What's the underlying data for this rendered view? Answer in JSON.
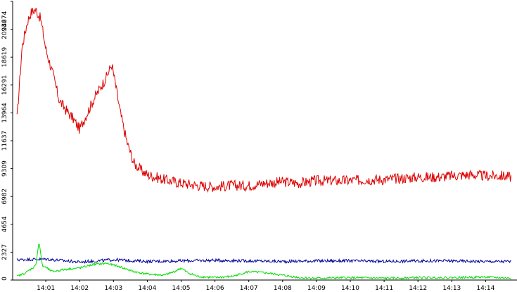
{
  "chart_data": {
    "type": "line",
    "title": "",
    "xlabel": "",
    "ylabel": "",
    "x_ticks": [
      "14:01",
      "14:02",
      "14:03",
      "14:04",
      "14:05",
      "14:06",
      "14:07",
      "14:08",
      "14:09",
      "14:10",
      "14:11",
      "14:12",
      "14:13",
      "14:14"
    ],
    "x_range_minutes": [
      0.1,
      14.75
    ],
    "y_ticks": [
      0,
      2327,
      4654,
      6982,
      9309,
      11637,
      13964,
      16291,
      18619,
      20946,
      23274
    ],
    "ylim": [
      0,
      23274
    ],
    "grid": false,
    "legend": "none",
    "series": [
      {
        "color": "#dd0000",
        "x": [
          0.15,
          0.3,
          0.45,
          0.55,
          0.7,
          0.85,
          1.0,
          1.2,
          1.4,
          1.6,
          1.8,
          2.0,
          2.2,
          2.4,
          2.6,
          2.8,
          2.95,
          3.05,
          3.2,
          3.4,
          3.6,
          3.8,
          4.0,
          4.5,
          5.0,
          5.5,
          6.0,
          6.5,
          7.0,
          7.5,
          8.0,
          8.5,
          9.0,
          9.5,
          10.0,
          10.5,
          11.0,
          11.5,
          12.0,
          12.5,
          13.0,
          13.5,
          14.0,
          14.5,
          14.75
        ],
        "values": [
          13500,
          19500,
          21500,
          22300,
          22600,
          21800,
          19300,
          17300,
          15000,
          14200,
          13500,
          12600,
          13800,
          15000,
          16000,
          17000,
          18000,
          16500,
          14000,
          11500,
          9800,
          9200,
          8800,
          8400,
          8100,
          7900,
          7800,
          7900,
          7900,
          8100,
          8200,
          8100,
          8300,
          8300,
          8300,
          8400,
          8400,
          8500,
          8600,
          8600,
          8700,
          8800,
          8700,
          8700,
          8600
        ]
      },
      {
        "color": "#000099",
        "x": [
          0.15,
          1.0,
          2.0,
          3.0,
          4.0,
          5.0,
          6.0,
          7.0,
          8.0,
          9.0,
          10.0,
          11.0,
          12.0,
          13.0,
          14.0,
          14.75
        ],
        "values": [
          1700,
          1750,
          1500,
          1700,
          1550,
          1600,
          1650,
          1600,
          1550,
          1600,
          1600,
          1550,
          1600,
          1600,
          1550,
          1550
        ]
      },
      {
        "color": "#00dd00",
        "x": [
          0.15,
          0.4,
          0.7,
          0.8,
          0.9,
          1.2,
          1.6,
          2.0,
          2.4,
          2.8,
          3.2,
          3.6,
          4.0,
          4.5,
          4.8,
          5.0,
          5.2,
          5.5,
          6.0,
          6.5,
          7.0,
          7.5,
          8.0,
          8.5,
          9.0,
          10.0,
          11.0,
          12.0,
          13.0,
          14.0,
          14.75
        ],
        "values": [
          300,
          600,
          1200,
          3200,
          1200,
          700,
          900,
          1000,
          1300,
          1400,
          1100,
          700,
          500,
          400,
          700,
          1000,
          600,
          300,
          200,
          300,
          700,
          600,
          400,
          200,
          150,
          200,
          150,
          200,
          200,
          250,
          150
        ]
      }
    ]
  }
}
